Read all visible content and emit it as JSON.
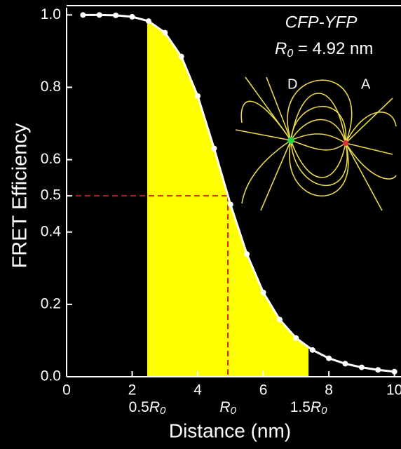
{
  "chart_data": {
    "type": "line",
    "y_label": "FRET Efficiency",
    "x_label": "Distance (nm)",
    "annotation_title": "CFP-YFP",
    "annotation_r0": {
      "symbol": "R",
      "sub": "0",
      "rest": " = 4.92 nm"
    },
    "inset_labels": [
      "D",
      "A"
    ],
    "x": [
      0.5,
      1,
      1.5,
      2,
      2.5,
      3,
      3.5,
      4,
      4.5,
      5,
      5.5,
      6,
      6.5,
      7,
      7.5,
      8,
      8.5,
      9,
      9.5,
      10
    ],
    "series": [
      {
        "color": "#ffffff",
        "values": [
          1.0,
          1.0,
          0.999,
          0.995,
          0.983,
          0.951,
          0.885,
          0.776,
          0.631,
          0.476,
          0.339,
          0.233,
          0.158,
          0.107,
          0.074,
          0.051,
          0.036,
          0.026,
          0.019,
          0.014
        ]
      }
    ],
    "shade": {
      "range": [
        2.46,
        7.38
      ],
      "color": "#ffff00"
    },
    "reference": {
      "x": 4.92,
      "y": 0.5,
      "color": "#cc1f1f"
    },
    "range_labels": [
      {
        "value": 2.46,
        "prefix": "0.5",
        "symbol": "R",
        "sub": "0"
      },
      {
        "value": 4.92,
        "prefix": "",
        "symbol": "R",
        "sub": "0"
      },
      {
        "value": 7.38,
        "prefix": "1.5",
        "symbol": "R",
        "sub": "0"
      }
    ],
    "xlim": [
      0,
      10.2
    ],
    "ylim": [
      0,
      1.02
    ],
    "xticks": [
      0,
      2,
      4,
      6,
      8,
      10
    ],
    "yticks": [
      {
        "value": 0,
        "label": "0.0"
      },
      0.2,
      0.4,
      0.5,
      0.6,
      0.8,
      {
        "value": 1,
        "label": "1.0"
      }
    ]
  }
}
